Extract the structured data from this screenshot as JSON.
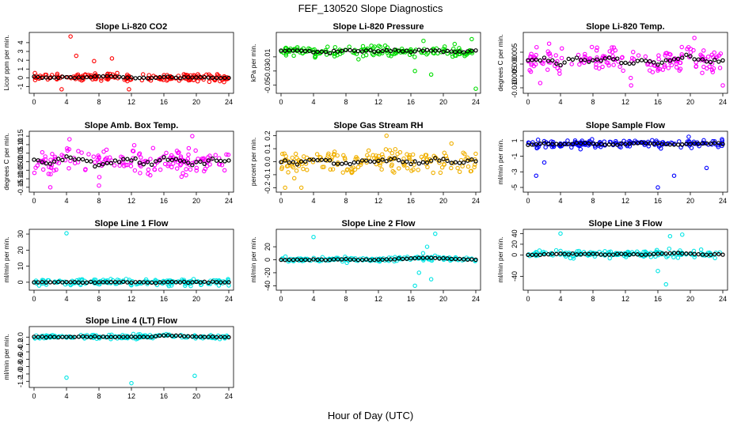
{
  "figure": {
    "title": "FEF_130520  Slope Diagnostics",
    "xlabel": "Hour of Day (UTC)"
  },
  "chart_data": [
    {
      "type": "scatter",
      "title": "Slope Li-820 CO2",
      "ylabel": "Licor ppm per min.",
      "color": "#ff0000",
      "xlim": [
        0,
        24
      ],
      "ylim": [
        -1.4,
        4.8
      ],
      "yticks": [
        -1,
        0,
        1,
        2,
        3,
        4
      ],
      "ytick_labels": [
        "-1",
        "0",
        "1",
        "2",
        "3",
        "4"
      ],
      "xticks": [
        0,
        4,
        8,
        12,
        16,
        20,
        24
      ],
      "x": [
        0,
        2,
        4,
        6,
        8,
        10,
        12,
        14,
        16,
        18,
        20,
        22,
        24
      ],
      "series": [
        {
          "name": "samples",
          "spread": 0.35,
          "outliers": [
            [
              4.5,
              4.7
            ],
            [
              3.4,
              -1.3
            ],
            [
              11.7,
              -1.3
            ],
            [
              5.2,
              2.5
            ],
            [
              7.4,
              1.9
            ],
            [
              9.6,
              2.2
            ]
          ]
        },
        {
          "name": "mean",
          "values": [
            0.1,
            0.0,
            0.1,
            0.0,
            0.2,
            0.1,
            0.0,
            0.0,
            0.1,
            0.0,
            0.1,
            0.0,
            0.0
          ]
        }
      ]
    },
    {
      "type": "scatter",
      "title": "Slope Li-820 Pressure",
      "ylabel": "kPa per min.",
      "color": "#00dd00",
      "xlim": [
        0,
        24
      ],
      "ylim": [
        -0.057,
        0.02
      ],
      "yticks": [
        -0.05,
        -0.03,
        -0.01
      ],
      "ytick_labels": [
        "-0.05",
        "-0.03",
        "-0.01"
      ],
      "xticks": [
        0,
        4,
        8,
        12,
        16,
        20,
        24
      ],
      "x": [
        0,
        2,
        4,
        6,
        8,
        10,
        12,
        14,
        16,
        18,
        20,
        22,
        24
      ],
      "series": [
        {
          "name": "samples",
          "spread": 0.006,
          "outliers": [
            [
              16.5,
              -0.03
            ],
            [
              18.5,
              -0.035
            ],
            [
              24,
              -0.055
            ],
            [
              23.5,
              0.015
            ]
          ]
        },
        {
          "name": "mean",
          "values": [
            -0.002,
            -0.001,
            -0.002,
            -0.003,
            -0.002,
            -0.001,
            -0.002,
            -0.001,
            -0.002,
            -0.001,
            -0.002,
            -0.003,
            -0.001
          ]
        }
      ]
    },
    {
      "type": "scatter",
      "title": "Slope Li-820 Temp.",
      "ylabel": "degrees C per min.",
      "color": "#ff00ff",
      "xlim": [
        0,
        24
      ],
      "ylim": [
        -0.011,
        0.012
      ],
      "yticks": [
        -0.01,
        -0.005,
        0,
        0.005
      ],
      "ytick_labels": [
        "-0.010",
        "-0.005",
        "0.000",
        "0.005"
      ],
      "xticks": [
        0,
        4,
        8,
        12,
        16,
        20,
        24
      ],
      "x": [
        0,
        2,
        4,
        6,
        8,
        10,
        12,
        14,
        16,
        18,
        20,
        22,
        24
      ],
      "series": [
        {
          "name": "samples",
          "spread": 0.004,
          "outliers": [
            [
              12.7,
              -0.009
            ],
            [
              20.5,
              0.011
            ],
            [
              24,
              -0.009
            ],
            [
              1.5,
              -0.008
            ]
          ]
        },
        {
          "name": "mean",
          "values": [
            0.001,
            0.002,
            0.0,
            0.002,
            0.001,
            0.003,
            0.001,
            0.002,
            0.0,
            0.002,
            0.003,
            0.001,
            0.002
          ]
        }
      ]
    },
    {
      "type": "scatter",
      "title": "Slope Amb. Box Temp.",
      "ylabel": "degrees C per min.",
      "color": "#ff00ff",
      "xlim": [
        0,
        24
      ],
      "ylim": [
        -0.16,
        0.16
      ],
      "yticks": [
        -0.15,
        -0.1,
        -0.05,
        0,
        0.05,
        0.1,
        0.15
      ],
      "ytick_labels": [
        "-0.15",
        "-0.10",
        "-0.05",
        "0.00",
        "0.05",
        "0.10",
        "0.15"
      ],
      "xticks": [
        0,
        4,
        8,
        12,
        16,
        20,
        24
      ],
      "x": [
        0,
        2,
        4,
        6,
        8,
        10,
        12,
        14,
        16,
        18,
        20,
        22,
        24
      ],
      "series": [
        {
          "name": "samples",
          "spread": 0.06,
          "outliers": [
            [
              19.5,
              0.15
            ],
            [
              2,
              -0.15
            ],
            [
              8,
              -0.14
            ]
          ]
        },
        {
          "name": "mean",
          "values": [
            0.0,
            -0.01,
            0.02,
            0.01,
            -0.02,
            0.0,
            0.01,
            -0.01,
            0.02,
            0.0,
            -0.01,
            0.01,
            0.0
          ]
        }
      ]
    },
    {
      "type": "scatter",
      "title": "Slope Gas Stream RH",
      "ylabel": "percent per min.",
      "color": "#f0b000",
      "xlim": [
        0,
        24
      ],
      "ylim": [
        -0.21,
        0.21
      ],
      "yticks": [
        -0.2,
        -0.1,
        0,
        0.1,
        0.2
      ],
      "ytick_labels": [
        "-0.2",
        "-0.1",
        "0.0",
        "0.1",
        "0.2"
      ],
      "xticks": [
        0,
        4,
        8,
        12,
        16,
        20,
        24
      ],
      "x": [
        0,
        2,
        4,
        6,
        8,
        10,
        12,
        14,
        16,
        18,
        20,
        22,
        24
      ],
      "series": [
        {
          "name": "samples",
          "spread": 0.08,
          "outliers": [
            [
              13,
              0.2
            ],
            [
              0.5,
              -0.2
            ],
            [
              2.5,
              -0.2
            ],
            [
              21,
              0.14
            ]
          ]
        },
        {
          "name": "mean",
          "values": [
            0.0,
            -0.01,
            0.01,
            0.0,
            -0.02,
            0.01,
            0.0,
            0.02,
            -0.01,
            0.0,
            0.01,
            -0.01,
            0.0
          ]
        }
      ]
    },
    {
      "type": "scatter",
      "title": "Slope Sample Flow",
      "ylabel": "ml/min per min.",
      "color": "#0000ff",
      "xlim": [
        0,
        24
      ],
      "ylim": [
        -5.2,
        1.8
      ],
      "yticks": [
        -5,
        -3,
        -1,
        1
      ],
      "ytick_labels": [
        "-5",
        "-3",
        "-1",
        "1"
      ],
      "xticks": [
        0,
        4,
        8,
        12,
        16,
        20,
        24
      ],
      "x": [
        0,
        2,
        4,
        6,
        8,
        10,
        12,
        14,
        16,
        18,
        20,
        22,
        24
      ],
      "series": [
        {
          "name": "samples",
          "spread": 0.4,
          "outliers": [
            [
              16,
              -5
            ],
            [
              18,
              -3.5
            ],
            [
              22,
              -2.5
            ],
            [
              19.8,
              1.5
            ],
            [
              2,
              -1.8
            ],
            [
              1,
              -3.5
            ]
          ]
        },
        {
          "name": "mean",
          "values": [
            0.5,
            0.6,
            0.5,
            0.7,
            0.6,
            0.5,
            0.6,
            0.7,
            0.6,
            0.5,
            0.6,
            0.7,
            0.6
          ]
        }
      ]
    },
    {
      "type": "scatter",
      "title": "Slope Line 1 Flow",
      "ylabel": "ml/min per min.",
      "color": "#00e5e5",
      "xlim": [
        0,
        24
      ],
      "ylim": [
        -3,
        31
      ],
      "yticks": [
        0,
        10,
        20,
        30
      ],
      "ytick_labels": [
        "0",
        "10",
        "20",
        "30"
      ],
      "xticks": [
        0,
        4,
        8,
        12,
        16,
        20,
        24
      ],
      "x": [
        0,
        2,
        4,
        6,
        8,
        10,
        12,
        14,
        16,
        18,
        20,
        22,
        24
      ],
      "series": [
        {
          "name": "samples",
          "spread": 1.5,
          "outliers": [
            [
              4,
              30.5
            ],
            [
              24,
              -2
            ]
          ]
        },
        {
          "name": "mean",
          "values": [
            0,
            0,
            0,
            0,
            0,
            0,
            0,
            0,
            0,
            0,
            0,
            0,
            0
          ]
        }
      ]
    },
    {
      "type": "scatter",
      "title": "Slope Line 2 Flow",
      "ylabel": "ml/min per min.",
      "color": "#00e5e5",
      "xlim": [
        0,
        24
      ],
      "ylim": [
        -42,
        42
      ],
      "yticks": [
        -40,
        -20,
        0,
        20
      ],
      "ytick_labels": [
        "-40",
        "-20",
        "0",
        "20"
      ],
      "xticks": [
        0,
        4,
        8,
        12,
        16,
        20,
        24
      ],
      "x": [
        0,
        2,
        4,
        6,
        8,
        10,
        12,
        14,
        16,
        18,
        20,
        22,
        24
      ],
      "series": [
        {
          "name": "samples",
          "spread": 2.5,
          "outliers": [
            [
              4,
              35
            ],
            [
              17,
              -20
            ],
            [
              18,
              20
            ],
            [
              16.5,
              -40
            ],
            [
              19,
              40
            ],
            [
              17.5,
              10
            ],
            [
              18.5,
              -30
            ]
          ]
        },
        {
          "name": "mean",
          "values": [
            0,
            0,
            0,
            0,
            1,
            0,
            0,
            1,
            2,
            3,
            2,
            1,
            0
          ]
        }
      ]
    },
    {
      "type": "scatter",
      "title": "Slope Line 3 Flow",
      "ylabel": "ml/min per min.",
      "color": "#00e5e5",
      "xlim": [
        0,
        24
      ],
      "ylim": [
        -60,
        42
      ],
      "yticks": [
        -40,
        0,
        20,
        40
      ],
      "ytick_labels": [
        "-40",
        "0",
        "20",
        "40"
      ],
      "xticks": [
        0,
        4,
        8,
        12,
        16,
        20,
        24
      ],
      "x": [
        0,
        2,
        4,
        6,
        8,
        10,
        12,
        14,
        16,
        18,
        20,
        22,
        24
      ],
      "series": [
        {
          "name": "samples",
          "spread": 5,
          "outliers": [
            [
              4,
              40
            ],
            [
              17,
              -55
            ],
            [
              17.5,
              35
            ],
            [
              19,
              38
            ],
            [
              16,
              -30
            ]
          ]
        },
        {
          "name": "mean",
          "values": [
            0,
            1,
            2,
            1,
            2,
            1,
            2,
            1,
            2,
            3,
            2,
            1,
            0
          ]
        }
      ]
    },
    {
      "type": "scatter",
      "title": "Slope Line 4 (LT) Flow",
      "ylabel": "ml/min per min.",
      "color": "#00e5e5",
      "xlim": [
        0,
        24
      ],
      "ylim": [
        -1.28,
        0.2
      ],
      "yticks": [
        -1.2,
        -1.0,
        -0.8,
        -0.6,
        -0.4,
        -0.2,
        0
      ],
      "ytick_labels": [
        "-1.2",
        "-1.0",
        "-0.8",
        "-0.6",
        "-0.4",
        "-0.2",
        "0.0"
      ],
      "xticks": [
        0,
        4,
        8,
        12,
        16,
        20,
        24
      ],
      "x": [
        0,
        2,
        4,
        6,
        8,
        10,
        12,
        14,
        16,
        18,
        20,
        22,
        24
      ],
      "series": [
        {
          "name": "samples",
          "spread": 0.05,
          "outliers": [
            [
              4,
              -1.1
            ],
            [
              12,
              -1.25
            ],
            [
              19.8,
              -1.05
            ]
          ]
        },
        {
          "name": "mean",
          "values": [
            0.0,
            0.01,
            0.0,
            0.01,
            0.0,
            0.0,
            0.01,
            0.0,
            0.05,
            0.03,
            0.01,
            0.0,
            0.0
          ]
        }
      ]
    }
  ]
}
